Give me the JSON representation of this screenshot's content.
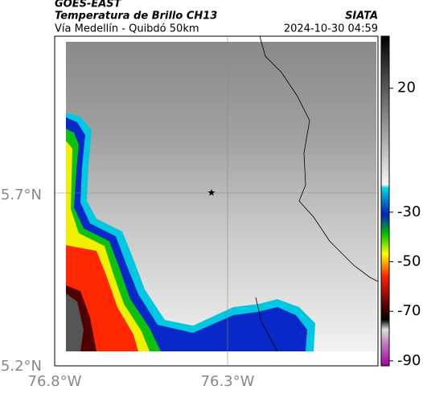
{
  "header": {
    "source": "GOES-EAST",
    "title": "Temperatura de Brillo CH13",
    "brand": "SIATA",
    "subtitle": "Vía Medellín - Quibdó 50km",
    "datetime": "2024-10-30 04:59"
  },
  "map": {
    "lat_labels": [
      "5.7°N",
      "5.2°N"
    ],
    "lon_labels": [
      "76.8°W",
      "76.3°W"
    ]
  },
  "colorbar": {
    "range": [
      41,
      -92
    ],
    "ticks": [
      20,
      -30,
      -50,
      -70,
      -90
    ]
  }
}
